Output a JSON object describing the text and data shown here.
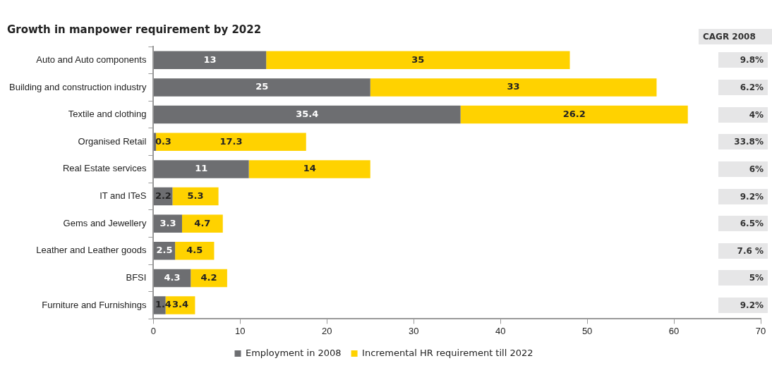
{
  "chart_data": {
    "type": "bar",
    "orientation": "horizontal",
    "stacked": true,
    "title": "Growth in manpower requirement by 2022",
    "categories": [
      "Auto and Auto components",
      "Building and construction industry",
      "Textile and clothing",
      "Organised Retail",
      "Real Estate services",
      "IT and ITeS",
      "Gems and Jewellery",
      "Leather and Leather goods",
      "BFSI",
      "Furniture and Furnishings"
    ],
    "series": [
      {
        "name": "Employment in 2008",
        "color": "#6d6e71",
        "values": [
          13,
          25,
          35.4,
          0.3,
          11,
          2.2,
          3.3,
          2.5,
          4.3,
          1.4
        ]
      },
      {
        "name": "Incremental HR requirement till 2022",
        "color": "#ffd200",
        "values": [
          35,
          33,
          26.2,
          17.3,
          14,
          5.3,
          4.7,
          4.5,
          4.2,
          3.4
        ]
      }
    ],
    "xlim": [
      0,
      70
    ],
    "xticks": [
      0,
      10,
      20,
      30,
      40,
      50,
      60,
      70
    ],
    "data_labels": true,
    "grid": false,
    "legend": "bottom",
    "annotations": [
      "CAGR 2008",
      "9.8%",
      "6.2%",
      "4%",
      "33.8%",
      "6%",
      "9.2%",
      "6.5%",
      "7.6 %",
      "5%",
      "9.2%"
    ]
  }
}
